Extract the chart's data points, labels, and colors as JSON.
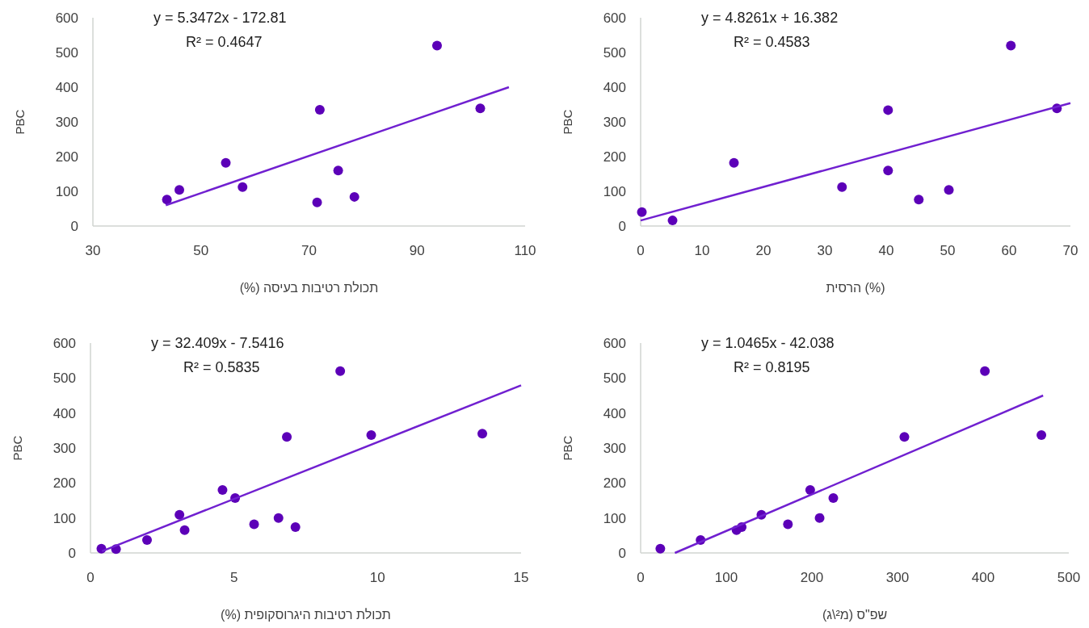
{
  "chart_data": [
    {
      "type": "scatter",
      "xlabel": "תכולת רטיבות בעיסה (%)",
      "ylabel": "PBC",
      "xlim": [
        30,
        110
      ],
      "xticks": [
        30,
        50,
        70,
        90,
        110
      ],
      "ylim": [
        0,
        600
      ],
      "yticks": [
        0,
        100,
        200,
        300,
        400,
        500,
        600
      ],
      "annotations": [
        "y = 5.3472x - 172.81",
        "R² = 0.4647"
      ],
      "series": [
        {
          "type": "scatter",
          "color": "#5c00b8",
          "marker": "circle",
          "x": [
            43.7,
            46.0,
            54.6,
            57.7,
            71.5,
            72.0,
            75.4,
            78.4,
            93.7,
            101.7
          ],
          "values": [
            76,
            104,
            182,
            112,
            68,
            335,
            160,
            84,
            520,
            339
          ]
        },
        {
          "type": "line",
          "color": "#7020d0",
          "x": [
            43.5,
            107
          ],
          "values": [
            60,
            400
          ]
        }
      ]
    },
    {
      "type": "scatter",
      "xlabel": "(%) הרסית",
      "ylabel": "PBC",
      "xlim": [
        0,
        70
      ],
      "xticks": [
        0,
        10,
        20,
        30,
        40,
        50,
        60,
        70
      ],
      "ylim": [
        0,
        600
      ],
      "yticks": [
        0,
        100,
        200,
        300,
        400,
        500,
        600
      ],
      "annotations": [
        "y = 4.8261x + 16.382",
        "R² = 0.4583"
      ],
      "series": [
        {
          "type": "scatter",
          "color": "#5c00b8",
          "marker": "circle",
          "x": [
            0.2,
            5.2,
            15.2,
            32.8,
            40.3,
            40.3,
            45.3,
            50.2,
            60.3,
            67.8
          ],
          "values": [
            40,
            16,
            182,
            112,
            334,
            160,
            76,
            104,
            520,
            339
          ]
        },
        {
          "type": "line",
          "color": "#7020d0",
          "x": [
            0,
            70
          ],
          "values": [
            16,
            354
          ]
        }
      ]
    },
    {
      "type": "scatter",
      "xlabel": "תכולת רטיבות היגרוסקופית (%)",
      "ylabel": "PBC",
      "xlim": [
        0,
        15
      ],
      "xticks": [
        0,
        5,
        10,
        15
      ],
      "ylim": [
        0,
        600
      ],
      "yticks": [
        0,
        100,
        200,
        300,
        400,
        500,
        600
      ],
      "annotations": [
        "y = 32.409x - 7.5416",
        "R² = 0.5835"
      ],
      "series": [
        {
          "type": "scatter",
          "color": "#5c00b8",
          "marker": "circle",
          "x": [
            0.38,
            0.89,
            1.97,
            3.1,
            3.28,
            4.6,
            5.04,
            5.7,
            6.55,
            6.84,
            7.14,
            8.7,
            9.78,
            13.65
          ],
          "values": [
            12,
            11,
            37,
            109,
            65,
            180,
            157,
            82,
            100,
            332,
            74,
            520,
            337,
            341
          ]
        },
        {
          "type": "line",
          "color": "#7020d0",
          "x": [
            0.4,
            15
          ],
          "values": [
            5,
            479
          ]
        }
      ]
    },
    {
      "type": "scatter",
      "xlabel": "שפ\"ס (מ²\\ג)",
      "ylabel": "PBC",
      "xlim": [
        0,
        500
      ],
      "xticks": [
        0,
        100,
        200,
        300,
        400,
        500
      ],
      "ylim": [
        0,
        600
      ],
      "yticks": [
        0,
        100,
        200,
        300,
        400,
        500,
        600
      ],
      "annotations": [
        "y = 1.0465x - 42.038",
        "R² = 0.8195"
      ],
      "series": [
        {
          "type": "scatter",
          "color": "#5c00b8",
          "marker": "circle",
          "x": [
            23,
            70,
            112,
            118,
            141,
            172,
            198,
            209,
            225,
            308,
            402,
            468
          ],
          "values": [
            12,
            37,
            65,
            74,
            109,
            82,
            180,
            100,
            157,
            332,
            520,
            337
          ]
        },
        {
          "type": "line",
          "color": "#7020d0",
          "x": [
            40,
            470
          ],
          "values": [
            0,
            450
          ]
        }
      ]
    }
  ]
}
